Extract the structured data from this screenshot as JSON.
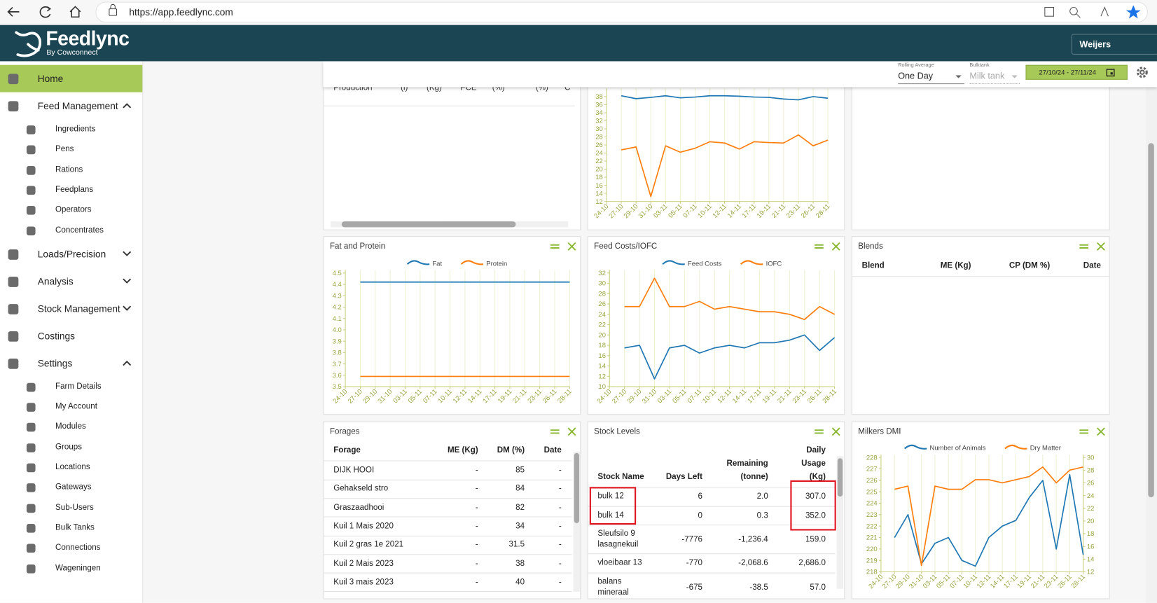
{
  "browser": {
    "url": "https://app.feedlync.com"
  },
  "header": {
    "brand": "Feedlync",
    "tagline": "By Cowconnect",
    "farm": "Weijers"
  },
  "toolbar": {
    "rolling_label": "Rolling Average",
    "rolling_value": "One Day",
    "bulktank_label": "Bulktank",
    "bulktank_value": "Milk tank",
    "date_range": "27/10/24 - 27/11/24"
  },
  "sidebar": [
    {
      "label": "Home",
      "active": true
    },
    {
      "label": "Feed Management",
      "expanded": true,
      "children": [
        "Ingredients",
        "Pens",
        "Rations",
        "Feedplans",
        "Operators",
        "Concentrates"
      ]
    },
    {
      "label": "Loads/Precision",
      "expanded": false
    },
    {
      "label": "Analysis",
      "expanded": false
    },
    {
      "label": "Stock Management",
      "expanded": false
    },
    {
      "label": "Costings"
    },
    {
      "label": "Settings",
      "expanded": true,
      "children": [
        "Farm Details",
        "My Account",
        "Modules",
        "Groups",
        "Locations",
        "Gateways",
        "Sub-Users",
        "Bulk Tanks",
        "Connections",
        "Wageningen"
      ]
    }
  ],
  "production_table": {
    "columns": [
      "Production",
      "(l)",
      "(Kg)",
      "FCE",
      "(%)",
      "(%)",
      "C"
    ]
  },
  "blends_table": {
    "title": "Blends",
    "columns": [
      "Blend",
      "ME (Kg)",
      "CP (DM %)",
      "Date"
    ]
  },
  "forages_table": {
    "title": "Forages",
    "columns": [
      "Forage",
      "ME (Kg)",
      "DM (%)",
      "Date"
    ],
    "rows": [
      [
        "DIJK HOOI",
        "-",
        "85",
        "-"
      ],
      [
        "Gehakseld stro",
        "-",
        "84",
        "-"
      ],
      [
        "Graszaadhooi",
        "-",
        "82",
        "-"
      ],
      [
        "Kuil 1 Mais 2020",
        "-",
        "34",
        "-"
      ],
      [
        "Kuil 2 gras 1e 2021",
        "-",
        "31.5",
        "-"
      ],
      [
        "Kuil 2 Mais 2023",
        "-",
        "38",
        "-"
      ],
      [
        "Kuil 3 mais 2023",
        "-",
        "40",
        "-"
      ]
    ]
  },
  "stock_table": {
    "title": "Stock Levels",
    "columns": [
      "Stock Name",
      "Days Left",
      "Remaining (tonne)",
      "Daily Usage (Kg)"
    ],
    "rows": [
      [
        "bulk 12",
        "6",
        "2.0",
        "307.0"
      ],
      [
        "bulk 14",
        "0",
        "0.3",
        "352.0"
      ],
      [
        "Sleufsilo 9 lasagnekuil",
        "-7776",
        "-1,236.4",
        "159.0"
      ],
      [
        "vloeibaar 13",
        "-770",
        "-2,068.6",
        "2,686.0"
      ],
      [
        "balans mineraal",
        "-675",
        "-38.5",
        "57.0"
      ]
    ]
  },
  "chart_data": [
    {
      "type": "line",
      "grid": true,
      "categories": [
        "24-10",
        "27-10",
        "29-10",
        "31-10",
        "03-11",
        "05-11",
        "07-11",
        "10-11",
        "12-11",
        "14-11",
        "17-11",
        "19-11",
        "21-11",
        "23-11",
        "26-11",
        "28-11"
      ],
      "series": [
        {
          "color": "#1f77b4",
          "values": [
            null,
            38.2,
            37.5,
            37.8,
            38.2,
            37.7,
            37.9,
            38.2,
            38.2,
            38.1,
            37.9,
            37.8,
            37.4,
            37.2,
            38,
            37.6
          ]
        },
        {
          "color": "#ff7f0e",
          "values": [
            null,
            24.8,
            25.5,
            13.2,
            25.8,
            24.2,
            25.2,
            26.8,
            26.5,
            25,
            26.8,
            26.6,
            26.5,
            28.5,
            25.8,
            27.2
          ]
        }
      ],
      "ylim": [
        12,
        40
      ],
      "yticks": [
        12,
        14,
        16,
        18,
        20,
        22,
        24,
        26,
        28,
        30,
        32,
        34,
        36,
        38
      ]
    },
    {
      "type": "line",
      "title": "Fat and Protein",
      "grid": true,
      "legend": "top",
      "categories": [
        "24-10",
        "27-10",
        "29-10",
        "31-10",
        "03-11",
        "05-11",
        "07-11",
        "10-11",
        "12-11",
        "14-11",
        "17-11",
        "19-11",
        "21-11",
        "23-11",
        "26-11",
        "28-11"
      ],
      "series": [
        {
          "name": "Fat",
          "color": "#1f77b4",
          "values": [
            null,
            4.42,
            4.42,
            4.42,
            4.42,
            4.42,
            4.42,
            4.42,
            4.42,
            4.42,
            4.42,
            4.42,
            4.42,
            4.42,
            4.42,
            4.42
          ]
        },
        {
          "name": "Protein",
          "color": "#ff7f0e",
          "values": [
            null,
            3.59,
            3.59,
            3.59,
            3.59,
            3.59,
            3.59,
            3.59,
            3.59,
            3.59,
            3.59,
            3.59,
            3.59,
            3.59,
            3.59,
            3.59
          ]
        }
      ],
      "ylim": [
        3.5,
        4.5
      ],
      "yticks": [
        3.5,
        3.6,
        3.7,
        3.8,
        3.9,
        {
          "value": 4,
          "label": "4.0"
        },
        4.1,
        4.2,
        4.3,
        4.4,
        4.5
      ]
    },
    {
      "type": "line",
      "title": "Feed Costs/IOFC",
      "grid": true,
      "legend": "top",
      "categories": [
        "24-10",
        "27-10",
        "29-10",
        "31-10",
        "03-11",
        "05-11",
        "07-11",
        "10-11",
        "12-11",
        "14-11",
        "17-11",
        "19-11",
        "21-11",
        "23-11",
        "26-11",
        "28-11"
      ],
      "series": [
        {
          "name": "Feed Costs",
          "color": "#1f77b4",
          "values": [
            null,
            17.5,
            18,
            11.5,
            17.5,
            18,
            16.5,
            17.5,
            18,
            17.5,
            18.5,
            18.5,
            19,
            20,
            17,
            19.5
          ]
        },
        {
          "name": "IOFC",
          "color": "#ff7f0e",
          "values": [
            null,
            25.5,
            25.5,
            31,
            25.5,
            25.5,
            26.5,
            25,
            25.5,
            25,
            24.5,
            24.5,
            24,
            23,
            25.5,
            24
          ]
        }
      ],
      "ylim": [
        10,
        32
      ],
      "yticks": [
        10,
        12,
        14,
        16,
        18,
        20,
        22,
        24,
        26,
        28,
        30,
        32
      ]
    },
    {
      "type": "line",
      "title": "Milkers DMI",
      "grid": true,
      "legend": "top",
      "categories": [
        "24-10",
        "27-10",
        "29-10",
        "31-10",
        "03-11",
        "05-11",
        "07-11",
        "10-11",
        "12-11",
        "14-11",
        "17-11",
        "19-11",
        "21-11",
        "23-11",
        "26-11",
        "28-11"
      ],
      "series": [
        {
          "name": "Number of Animals",
          "color": "#1f77b4",
          "values": [
            null,
            221,
            223,
            218.7,
            220.5,
            221,
            219,
            218.5,
            221,
            222,
            222.5,
            224.5,
            226,
            220,
            226.5,
            219.5
          ]
        },
        {
          "name": "Dry Matter",
          "color": "#ff7f0e",
          "axis": "y2",
          "values": [
            null,
            25,
            25.5,
            13,
            25.5,
            25,
            25,
            26.5,
            26.5,
            26,
            26.5,
            27,
            28.5,
            26,
            28,
            28.5
          ]
        }
      ],
      "ylim": [
        218,
        228
      ],
      "yticks": [
        218,
        219,
        220,
        221,
        222,
        223,
        224,
        225,
        226,
        227,
        228
      ],
      "y2lim": [
        12,
        30
      ],
      "y2ticks": [
        12,
        14,
        16,
        18,
        20,
        22,
        24,
        26,
        28,
        30
      ]
    }
  ]
}
